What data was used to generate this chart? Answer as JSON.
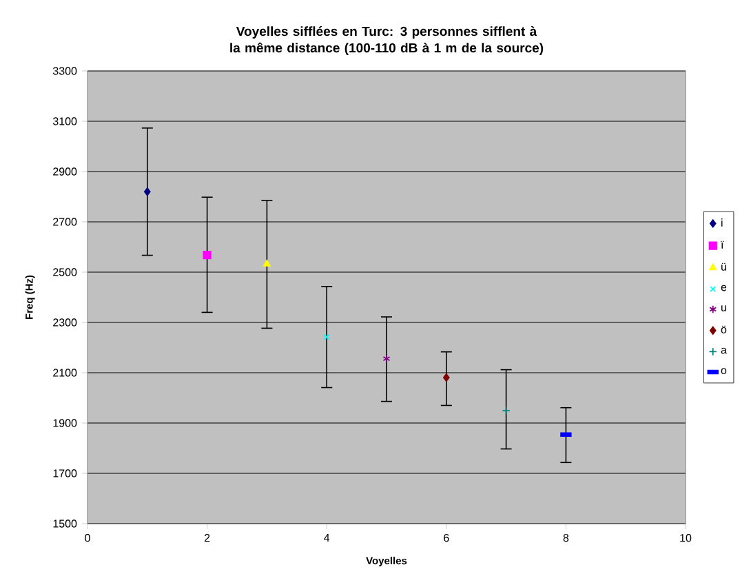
{
  "chart_data": {
    "type": "scatter",
    "title": "Voyelles sifflées en Turc: 3 personnes sifflent à la même distance (100-110 dB à 1 m de la source)",
    "xlabel": "Voyelles",
    "ylabel": "Freq (Hz)",
    "xlim": [
      0,
      10
    ],
    "xticks": [
      0,
      2,
      4,
      6,
      8,
      10
    ],
    "ylim": [
      1500,
      3300
    ],
    "yticks": [
      1500,
      1700,
      1900,
      2100,
      2300,
      2500,
      2700,
      2900,
      3100,
      3300
    ],
    "grid": "y",
    "legend": "right",
    "series": [
      {
        "name": "i",
        "color": "#000080",
        "marker": "diamond",
        "x": [
          1
        ],
        "values": [
          2820
        ],
        "errors": [
          [
            2567,
            3073
          ]
        ]
      },
      {
        "name": "ï",
        "color": "#ff00ff",
        "marker": "square",
        "x": [
          2
        ],
        "values": [
          2568
        ],
        "errors": [
          [
            2340,
            2798
          ]
        ]
      },
      {
        "name": "ü",
        "color": "#ffff00",
        "marker": "triangle",
        "x": [
          3
        ],
        "values": [
          2532
        ],
        "errors": [
          [
            2277,
            2785
          ]
        ]
      },
      {
        "name": "e",
        "color": "#00ffff",
        "marker": "cross",
        "x": [
          4
        ],
        "values": [
          2242
        ],
        "errors": [
          [
            2041,
            2443
          ]
        ]
      },
      {
        "name": "u",
        "color": "#800080",
        "marker": "cross",
        "x": [
          5
        ],
        "values": [
          2156
        ],
        "errors": [
          [
            1986,
            2322
          ]
        ]
      },
      {
        "name": "ö",
        "color": "#800000",
        "marker": "diamond",
        "x": [
          6
        ],
        "values": [
          2081
        ],
        "errors": [
          [
            1970,
            2183
          ]
        ]
      },
      {
        "name": "a",
        "color": "#008080",
        "marker": "plus",
        "x": [
          7
        ],
        "values": [
          1949
        ],
        "errors": [
          [
            1797,
            2112
          ]
        ]
      },
      {
        "name": "o",
        "color": "#0000ff",
        "marker": "square",
        "x": [
          8
        ],
        "values": [
          1854
        ],
        "errors": [
          [
            1743,
            1961
          ]
        ]
      }
    ]
  }
}
